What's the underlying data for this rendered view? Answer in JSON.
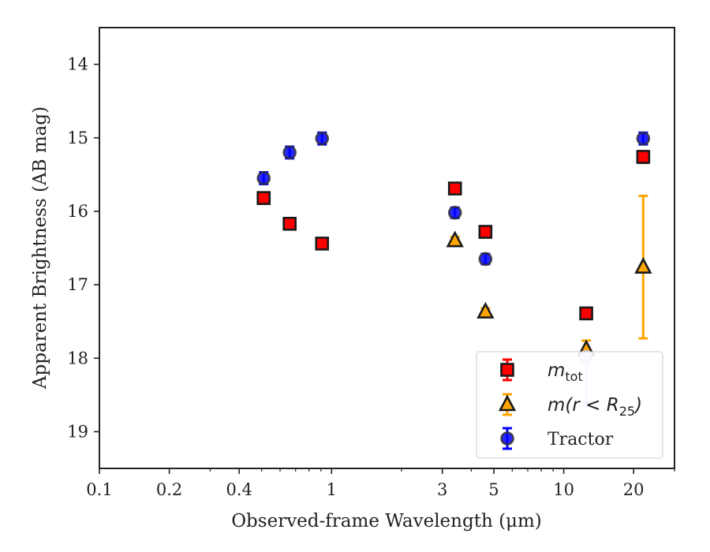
{
  "chart_data": {
    "type": "scatter",
    "title": "",
    "xlabel": "Observed-frame Wavelength (μm)",
    "ylabel": "Apparent Brightness (AB mag)",
    "xscale": "log",
    "xlim": [
      0.1,
      30
    ],
    "ylim": [
      19.5,
      13.5
    ],
    "y_inverted": true,
    "x_ticks": [
      0.1,
      0.2,
      0.4,
      1,
      3,
      5,
      10,
      20
    ],
    "x_tick_labels": [
      "0.1",
      "0.2",
      "0.4",
      "1",
      "3",
      "5",
      "10",
      "20"
    ],
    "y_ticks": [
      14,
      15,
      16,
      17,
      18,
      19
    ],
    "y_tick_labels": [
      "14",
      "15",
      "16",
      "17",
      "18",
      "19"
    ],
    "grid": false,
    "legend_position": "lower-right",
    "series": [
      {
        "name": "m_tot",
        "legend_main": "m",
        "legend_sub": "tot",
        "marker": "square",
        "color": "#ff0000",
        "x": [
          0.51,
          0.66,
          0.91,
          3.4,
          4.6,
          12.5,
          22.0
        ],
        "y": [
          15.82,
          16.17,
          16.44,
          15.69,
          16.28,
          17.39,
          15.26
        ],
        "yerr": [
          0.06,
          0.06,
          0.06,
          0.06,
          0.06,
          0.07,
          0.08
        ]
      },
      {
        "name": "m(r < R_25)",
        "legend_main": "m(r < R",
        "legend_sub": "25",
        "legend_tail": ")",
        "marker": "triangle",
        "color": "#ffa500",
        "x": [
          3.4,
          4.6,
          12.5,
          22.0
        ],
        "y": [
          16.4,
          17.37,
          17.88,
          16.76
        ],
        "yerr": [
          0.05,
          0.05,
          0.12,
          0.97
        ]
      },
      {
        "name": "Tractor",
        "marker": "circle",
        "color": "#0000ff",
        "x": [
          0.51,
          0.66,
          0.91,
          3.4,
          4.6,
          12.5,
          22.0
        ],
        "y": [
          15.55,
          15.2,
          15.01,
          16.02,
          16.65,
          17.98,
          15.01
        ],
        "yerr": [
          0.08,
          0.08,
          0.08,
          0.07,
          0.07,
          0.15,
          0.08
        ],
        "upper_limit_index": 5
      }
    ]
  }
}
